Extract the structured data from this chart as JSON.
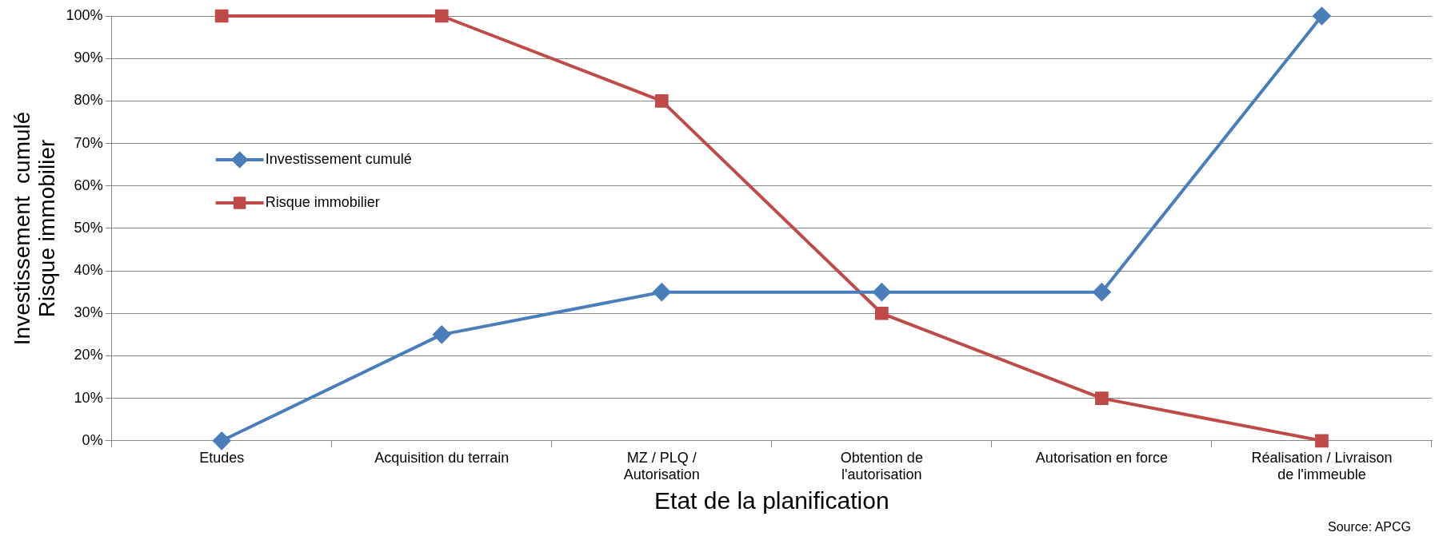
{
  "chart_data": {
    "type": "line",
    "xlabel": "Etat de la planification",
    "ylabel": "Investissement  cumulé\nRisque immobilier",
    "categories": [
      "Etudes",
      "Acquisition du terrain",
      "MZ / PLQ /\nAutorisation",
      "Obtention de\nl'autorisation",
      "Autorisation en force",
      "Réalisation / Livraison\nde l'immeuble"
    ],
    "series": [
      {
        "name": "Investissement cumulé",
        "color": "#4a7ebb",
        "marker": "diamond",
        "values": [
          0,
          25,
          35,
          35,
          35,
          100
        ]
      },
      {
        "name": "Risque immobilier",
        "color": "#be4b48",
        "marker": "square",
        "values": [
          100,
          100,
          80,
          30,
          10,
          0
        ]
      }
    ],
    "ylim": [
      0,
      100
    ],
    "yticks": [
      {
        "value": 0,
        "label": "0%"
      },
      {
        "value": 10,
        "label": "10%"
      },
      {
        "value": 20,
        "label": "20%"
      },
      {
        "value": 30,
        "label": "30%"
      },
      {
        "value": 40,
        "label": "40%"
      },
      {
        "value": 50,
        "label": "50%"
      },
      {
        "value": 60,
        "label": "60%"
      },
      {
        "value": 70,
        "label": "70%"
      },
      {
        "value": 80,
        "label": "80%"
      },
      {
        "value": 90,
        "label": "90%"
      },
      {
        "value": 100,
        "label": "100%"
      }
    ],
    "grid": "y",
    "legend": "top left",
    "line_style": "solid",
    "annotations": [
      "Source: APCG"
    ]
  }
}
